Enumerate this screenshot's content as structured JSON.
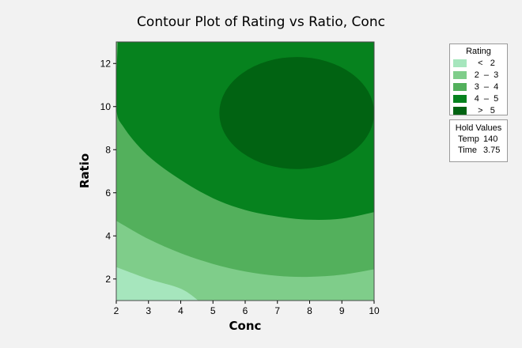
{
  "chart_data": {
    "type": "contour",
    "title": "Contour Plot of Rating vs Ratio, Conc",
    "xlabel": "Conc",
    "ylabel": "Ratio",
    "xlim": [
      2,
      10
    ],
    "ylim": [
      1,
      13
    ],
    "xticks": [
      "2",
      "3",
      "4",
      "5",
      "6",
      "7",
      "8",
      "9",
      "10"
    ],
    "yticks": [
      "2",
      "4",
      "6",
      "8",
      "10",
      "12"
    ],
    "legend_title": "Rating",
    "levels": [
      {
        "label": "<   2",
        "color": "#a6e6bd"
      },
      {
        "label": "2  –  3",
        "color": "#7fcd8a"
      },
      {
        "label": "3  –  4",
        "color": "#53b05c"
      },
      {
        "label": "4  –  5",
        "color": "#06821e"
      },
      {
        "label": ">   5",
        "color": "#016312"
      }
    ],
    "contours": [
      {
        "level": 2,
        "points": [
          [
            2,
            2.55
          ],
          [
            3,
            2.0
          ],
          [
            4,
            1.55
          ],
          [
            4.55,
            1.0
          ]
        ]
      },
      {
        "level": 3,
        "points": [
          [
            2,
            4.7
          ],
          [
            3,
            3.85
          ],
          [
            4,
            3.2
          ],
          [
            5,
            2.7
          ],
          [
            6,
            2.35
          ],
          [
            7,
            2.15
          ],
          [
            8,
            2.1
          ],
          [
            9,
            2.2
          ],
          [
            10,
            2.45
          ]
        ]
      },
      {
        "level": 4,
        "points": [
          [
            2.05,
            13.0
          ],
          [
            2.0,
            10.0
          ],
          [
            2.25,
            9.0
          ],
          [
            3,
            7.7
          ],
          [
            4,
            6.6
          ],
          [
            5,
            5.75
          ],
          [
            6,
            5.2
          ],
          [
            7,
            4.9
          ],
          [
            8,
            4.75
          ],
          [
            9,
            4.8
          ],
          [
            10,
            5.1
          ]
        ]
      },
      {
        "level": 5,
        "closed": true,
        "center": [
          7.6,
          9.7
        ],
        "rx": 2.4,
        "ry": 2.6
      }
    ],
    "hold_values": {
      "title": "Hold Values",
      "items": [
        {
          "name": "Temp",
          "value": "140"
        },
        {
          "name": "Time",
          "value": "3.75"
        }
      ]
    }
  }
}
